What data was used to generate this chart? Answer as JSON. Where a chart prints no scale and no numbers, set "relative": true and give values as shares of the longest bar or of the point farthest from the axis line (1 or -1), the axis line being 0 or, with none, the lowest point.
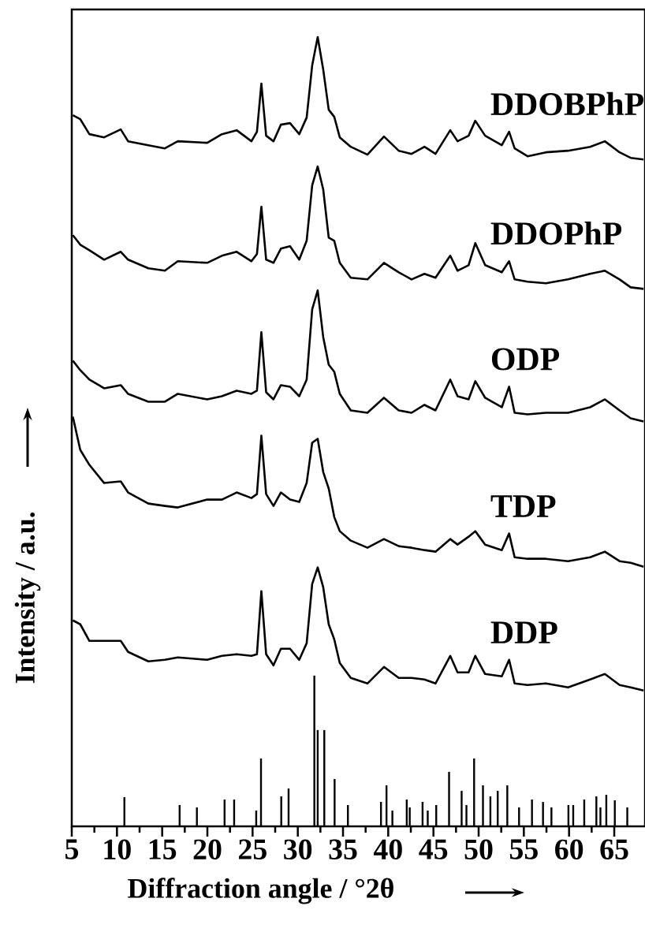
{
  "chart_data": {
    "type": "line",
    "relative": true,
    "xlabel": "Diffraction angle / °2θ",
    "ylabel": "Intensity / a.u.",
    "xlim": [
      5,
      68.4
    ],
    "xticks": [
      5,
      10,
      15,
      20,
      25,
      30,
      35,
      40,
      45,
      50,
      55,
      60,
      65
    ],
    "legend": false,
    "grid": false,
    "marker": "none",
    "line_style": "solid",
    "x": [
      5.12,
      5.94,
      6.95,
      8.58,
      10.42,
      11.23,
      13.47,
      15.3,
      16.73,
      19.98,
      21.61,
      23.24,
      24.87,
      25.48,
      25.97,
      26.5,
      27.31,
      28.13,
      29.14,
      30.16,
      30.98,
      31.59,
      32.2,
      32.81,
      33.42,
      34.03,
      34.64,
      35.86,
      37.7,
      39.53,
      41.16,
      42.58,
      44.01,
      45.23,
      46.86,
      47.67,
      48.89,
      49.63,
      50.72,
      52.56,
      53.37,
      53.98,
      55.41,
      57.44,
      59.89,
      62.33,
      63.96,
      65.59,
      66.81,
      68.24
    ],
    "series": [
      {
        "name": "DDOBPhP",
        "color": "#000000",
        "values": [
          0.901,
          0.896,
          0.877,
          0.873,
          0.883,
          0.868,
          0.863,
          0.859,
          0.868,
          0.866,
          0.877,
          0.882,
          0.868,
          0.88,
          0.941,
          0.875,
          0.868,
          0.889,
          0.891,
          0.877,
          0.898,
          0.964,
          1.0,
          0.959,
          0.908,
          0.899,
          0.873,
          0.861,
          0.851,
          0.874,
          0.856,
          0.852,
          0.861,
          0.852,
          0.882,
          0.868,
          0.875,
          0.894,
          0.875,
          0.863,
          0.88,
          0.859,
          0.849,
          0.854,
          0.856,
          0.861,
          0.868,
          0.854,
          0.847,
          0.845
        ]
      },
      {
        "name": "DDOPhP",
        "color": "#000000",
        "values": [
          0.749,
          0.737,
          0.73,
          0.718,
          0.728,
          0.718,
          0.707,
          0.704,
          0.716,
          0.714,
          0.723,
          0.728,
          0.716,
          0.725,
          0.785,
          0.718,
          0.714,
          0.732,
          0.735,
          0.718,
          0.742,
          0.812,
          0.836,
          0.807,
          0.746,
          0.742,
          0.714,
          0.695,
          0.693,
          0.714,
          0.702,
          0.693,
          0.7,
          0.695,
          0.723,
          0.704,
          0.711,
          0.739,
          0.711,
          0.702,
          0.716,
          0.693,
          0.69,
          0.688,
          0.693,
          0.7,
          0.704,
          0.693,
          0.683,
          0.681
        ]
      },
      {
        "name": "ODP",
        "color": "#000000",
        "values": [
          0.59,
          0.578,
          0.566,
          0.555,
          0.559,
          0.548,
          0.538,
          0.538,
          0.548,
          0.541,
          0.545,
          0.552,
          0.548,
          0.552,
          0.626,
          0.55,
          0.541,
          0.559,
          0.557,
          0.545,
          0.566,
          0.655,
          0.679,
          0.62,
          0.585,
          0.576,
          0.548,
          0.527,
          0.524,
          0.543,
          0.527,
          0.524,
          0.534,
          0.527,
          0.566,
          0.545,
          0.541,
          0.564,
          0.543,
          0.531,
          0.557,
          0.524,
          0.522,
          0.524,
          0.524,
          0.531,
          0.541,
          0.527,
          0.517,
          0.513
        ]
      },
      {
        "name": "TDP",
        "color": "#000000",
        "values": [
          0.519,
          0.477,
          0.458,
          0.435,
          0.437,
          0.423,
          0.409,
          0.406,
          0.404,
          0.414,
          0.414,
          0.423,
          0.416,
          0.421,
          0.495,
          0.421,
          0.406,
          0.423,
          0.414,
          0.411,
          0.435,
          0.486,
          0.491,
          0.449,
          0.428,
          0.392,
          0.374,
          0.362,
          0.353,
          0.364,
          0.355,
          0.353,
          0.35,
          0.348,
          0.364,
          0.357,
          0.367,
          0.374,
          0.357,
          0.35,
          0.371,
          0.341,
          0.339,
          0.339,
          0.336,
          0.341,
          0.348,
          0.336,
          0.334,
          0.329
        ]
      },
      {
        "name": "DDP",
        "color": "#000000",
        "values": [
          0.261,
          0.256,
          0.235,
          0.235,
          0.235,
          0.221,
          0.209,
          0.211,
          0.214,
          0.211,
          0.216,
          0.218,
          0.216,
          0.218,
          0.298,
          0.218,
          0.204,
          0.225,
          0.225,
          0.211,
          0.232,
          0.307,
          0.328,
          0.303,
          0.256,
          0.237,
          0.207,
          0.188,
          0.181,
          0.202,
          0.188,
          0.188,
          0.186,
          0.181,
          0.216,
          0.195,
          0.195,
          0.216,
          0.193,
          0.19,
          0.211,
          0.181,
          0.179,
          0.181,
          0.176,
          0.186,
          0.193,
          0.179,
          0.176,
          0.172
        ]
      },
      {
        "type": "bar",
        "color": "#000000",
        "x": [
          10.82,
          16.93,
          18.84,
          21.9,
          22.96,
          25.4,
          25.93,
          28.17,
          28.98,
          31.83,
          32.2,
          32.93,
          34.07,
          35.54,
          39.2,
          39.81,
          40.46,
          42.05,
          42.38,
          43.8,
          44.37,
          45.31,
          46.73,
          48.12,
          48.65,
          49.5,
          50.48,
          51.3,
          52.11,
          53.17,
          54.47,
          55.9,
          57.12,
          58.05,
          59.93,
          60.46,
          61.68,
          63.02,
          63.47,
          64.12,
          65.06,
          66.44
        ],
        "values": [
          0.037,
          0.027,
          0.024,
          0.034,
          0.034,
          0.02,
          0.086,
          0.038,
          0.048,
          0.191,
          0.122,
          0.122,
          0.06,
          0.027,
          0.031,
          0.052,
          0.02,
          0.034,
          0.024,
          0.031,
          0.02,
          0.027,
          0.069,
          0.045,
          0.027,
          0.086,
          0.052,
          0.038,
          0.045,
          0.052,
          0.024,
          0.034,
          0.031,
          0.024,
          0.027,
          0.027,
          0.034,
          0.038,
          0.024,
          0.04,
          0.033,
          0.024
        ]
      }
    ]
  }
}
